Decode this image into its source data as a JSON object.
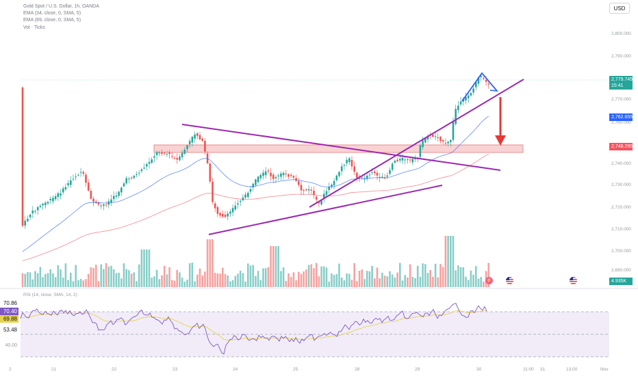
{
  "legend": {
    "symbol": "Gold Spot / U.S. Dollar, 1h, OANDA",
    "ema1": "EMA (34, close, 0, SMA, 5)",
    "ema2": "EMA (89, close, 0, SMA, 5)",
    "vol": "Vol · Ticks"
  },
  "currency_button": "USD",
  "price_axis": [
    "2,800.000",
    "2,790.000",
    "2,770.000",
    "2,760.000",
    "2,750.000",
    "2,740.000",
    "2,730.000",
    "2,720.000",
    "2,710.000",
    "2,700.000",
    "2,690.000"
  ],
  "price_tags": {
    "last_price": "2,779.745",
    "countdown": "15:41",
    "ema34": "2,762.655",
    "ema89": "2,748.295",
    "volume": "4.935K"
  },
  "rsi": {
    "legend": "RSI (14, close, SMA, 14, 2)",
    "values": [
      "70.86",
      "70.40",
      "69.88",
      "53.48"
    ],
    "level_label": "40.00"
  },
  "time_axis": [
    "2",
    "21",
    "22",
    "23",
    "24",
    "25",
    "28",
    "29",
    "30",
    "11:00",
    "31",
    "13:00",
    "Nov"
  ],
  "colors": {
    "up": "#26a69a",
    "down": "#ef5350",
    "ema34": "#2962ff",
    "ema89": "#f7525f",
    "pattern": "#9c27b0",
    "arrow": "#e53935",
    "rsi": "#7e57c2",
    "rsi_ma": "#e6d34a",
    "zone": "#f8c7c7"
  },
  "icons": [
    "lightning-icon",
    "us-flag-icon",
    "us-flag-icon"
  ]
}
